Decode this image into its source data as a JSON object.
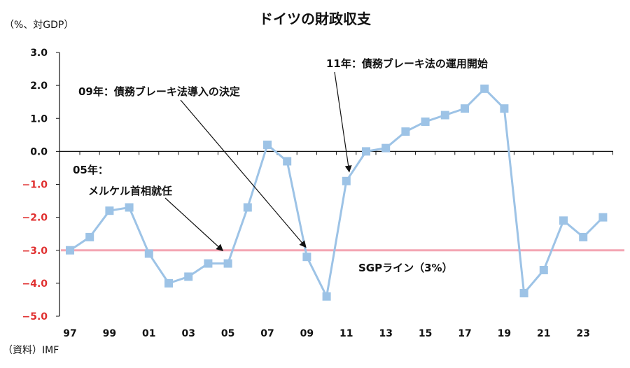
{
  "chart_data": {
    "type": "line",
    "title": "ドイツの財政収支",
    "unit_label": "（%、対GDP）",
    "source": "（資料）IMF",
    "xlabel": "",
    "ylabel": "",
    "ylim": [
      -5.0,
      3.0
    ],
    "y_ticks": [
      "3.0",
      "2.0",
      "1.0",
      "0.0",
      "−1.0",
      "−2.0",
      "−3.0",
      "−4.0",
      "−5.0"
    ],
    "y_tick_values": [
      3,
      2,
      1,
      0,
      -1,
      -2,
      -3,
      -4,
      -5
    ],
    "x_tick_labels": [
      "97",
      "99",
      "01",
      "03",
      "05",
      "07",
      "09",
      "11",
      "13",
      "15",
      "17",
      "19",
      "21",
      "23"
    ],
    "x_tick_years": [
      1997,
      1999,
      2001,
      2003,
      2005,
      2007,
      2009,
      2011,
      2013,
      2015,
      2017,
      2019,
      2021,
      2023
    ],
    "xlim": [
      1997,
      2024.6
    ],
    "series": [
      {
        "name": "財政収支",
        "color": "#9dc3e6",
        "x": [
          1997,
          1998,
          1999,
          2000,
          2001,
          2002,
          2003,
          2004,
          2005,
          2006,
          2007,
          2008,
          2009,
          2010,
          2011,
          2012,
          2013,
          2014,
          2015,
          2016,
          2017,
          2018,
          2019,
          2020,
          2021,
          2022,
          2023,
          2024
        ],
        "values": [
          -3.0,
          -2.6,
          -1.8,
          -1.7,
          -3.1,
          -4.0,
          -3.8,
          -3.4,
          -3.4,
          -1.7,
          0.2,
          -0.3,
          -3.2,
          -4.4,
          -0.9,
          0.0,
          0.1,
          0.6,
          0.9,
          1.1,
          1.3,
          1.9,
          1.3,
          -4.3,
          -3.6,
          -2.1,
          -2.6,
          -2.0
        ]
      }
    ],
    "reference_line": {
      "value": -3.0,
      "label": "SGPライン（3%）",
      "color": "#f4a6b3"
    },
    "annotations": [
      {
        "line1": "05年：",
        "line2": "メルケル首相就任",
        "target_year": 2005,
        "target_value": -3.0
      },
      {
        "line1": "09年：債務ブレーキ法導入の決定",
        "target_year": 2009,
        "target_value": -3.0
      },
      {
        "line1": "11年：債務ブレーキ法の運用開始",
        "target_year": 2011,
        "target_value": -0.6
      }
    ],
    "colors": {
      "axis": "#111111",
      "positive_tick": "#111111",
      "negative_tick": "#e03030"
    }
  }
}
